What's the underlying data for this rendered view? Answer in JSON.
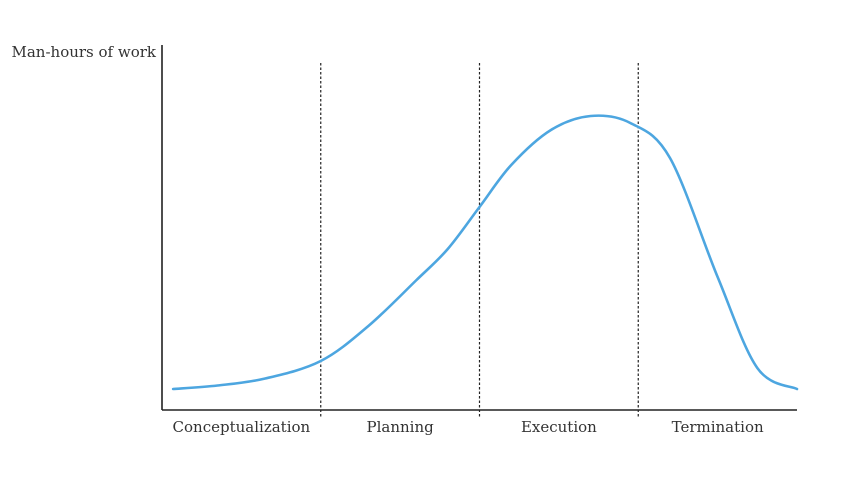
{
  "chart_data": {
    "type": "line",
    "title": "",
    "ylabel": "Man-hours of work",
    "xlabel": "",
    "phases": [
      "Conceptualization",
      "Planning",
      "Execution",
      "Termination"
    ],
    "phase_boundaries": [
      1,
      2,
      3
    ],
    "xlim": [
      0,
      4
    ],
    "ylim": [
      0,
      100
    ],
    "grid": false,
    "legend": "none",
    "series": [
      {
        "color": "#4da6e0",
        "x": [
          0.07,
          0.35,
          0.65,
          1.0,
          1.3,
          1.6,
          1.8,
          2.0,
          2.2,
          2.45,
          2.7,
          2.95,
          3.2,
          3.5,
          3.75,
          4.0
        ],
        "y": [
          6,
          7,
          9,
          14,
          24,
          37,
          46,
          58,
          70,
          80,
          84,
          82,
          72,
          38,
          12,
          6
        ]
      }
    ],
    "axis_color": "#222222",
    "divider_color": "#222222"
  }
}
